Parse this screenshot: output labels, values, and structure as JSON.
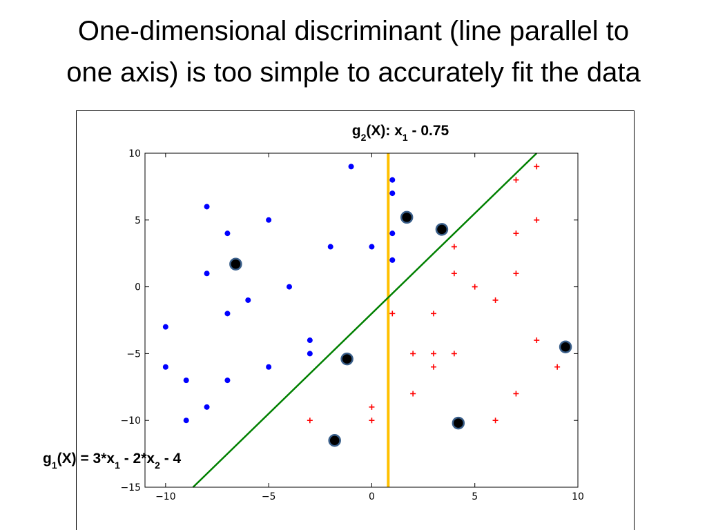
{
  "chart_data": {
    "type": "scatter",
    "title": [
      "One-dimensional discriminant (line parallel to",
      "one axis) is too simple to accurately fit the data"
    ],
    "xlim": [
      -11,
      10
    ],
    "ylim": [
      -15,
      10
    ],
    "xticks": [
      {
        "value": -10,
        "label": "−10"
      },
      {
        "value": -5,
        "label": "−5"
      },
      0,
      5,
      10
    ],
    "yticks": [
      {
        "value": -15,
        "label": "−15"
      },
      {
        "value": -10,
        "label": "−10"
      },
      {
        "value": -5,
        "label": "−5"
      },
      0,
      5,
      10
    ],
    "series": [
      {
        "marker": "dot",
        "color": "#0000ff",
        "x": [
          -1,
          1,
          1,
          -8,
          -5,
          -7,
          1,
          -2,
          0,
          1,
          -8,
          -4,
          -6,
          -7,
          -10,
          -3,
          -3,
          -10,
          -5,
          -9,
          -7,
          -8,
          -9
        ],
        "y": [
          9,
          8,
          7,
          6,
          5,
          4,
          4,
          3,
          3,
          2,
          1,
          0,
          -1,
          -2,
          -3,
          -4,
          -5,
          -6,
          -6,
          -7,
          -7,
          -9,
          -10
        ]
      },
      {
        "marker": "plus",
        "color": "#ff0000",
        "x": [
          8,
          7,
          8,
          7,
          4,
          4,
          7,
          5,
          6,
          1,
          3,
          8,
          2,
          3,
          4,
          3,
          9,
          2,
          7,
          0,
          -3,
          0,
          6
        ],
        "y": [
          9,
          8,
          5,
          4,
          3,
          1,
          1,
          0,
          -1,
          -2,
          -2,
          -4,
          -5,
          -5,
          -5,
          -6,
          -6,
          -8,
          -8,
          -9,
          -10,
          -10,
          -10
        ]
      },
      {
        "marker": "ring",
        "color": "#000000",
        "x": [
          -6.6,
          1.7,
          3.4,
          -1.2,
          -1.8,
          4.2,
          9.4
        ],
        "y": [
          1.7,
          5.2,
          4.3,
          -5.4,
          -11.5,
          -10.2,
          -4.5
        ]
      },
      {
        "marker": "line",
        "color": "#ffc000",
        "x": [
          0.8,
          0.8
        ],
        "y": [
          -15,
          10
        ]
      },
      {
        "marker": "line",
        "color": "#008000",
        "x": [
          -8.67,
          8
        ],
        "y": [
          -15,
          10
        ]
      }
    ],
    "annotations": [
      {
        "parts": [
          {
            "text": "g"
          },
          {
            "text": "2",
            "sub": true
          },
          {
            "text": "(X): x"
          },
          {
            "text": "1",
            "sub": true
          },
          {
            "text": " - 0.75"
          }
        ]
      },
      {
        "parts": [
          {
            "text": "g"
          },
          {
            "text": "1",
            "sub": true
          },
          {
            "text": "(X) = 3*x"
          },
          {
            "text": "1",
            "sub": true
          },
          {
            "text": " - 2*x"
          },
          {
            "text": "2",
            "sub": true
          },
          {
            "text": " - 4"
          }
        ]
      }
    ]
  }
}
